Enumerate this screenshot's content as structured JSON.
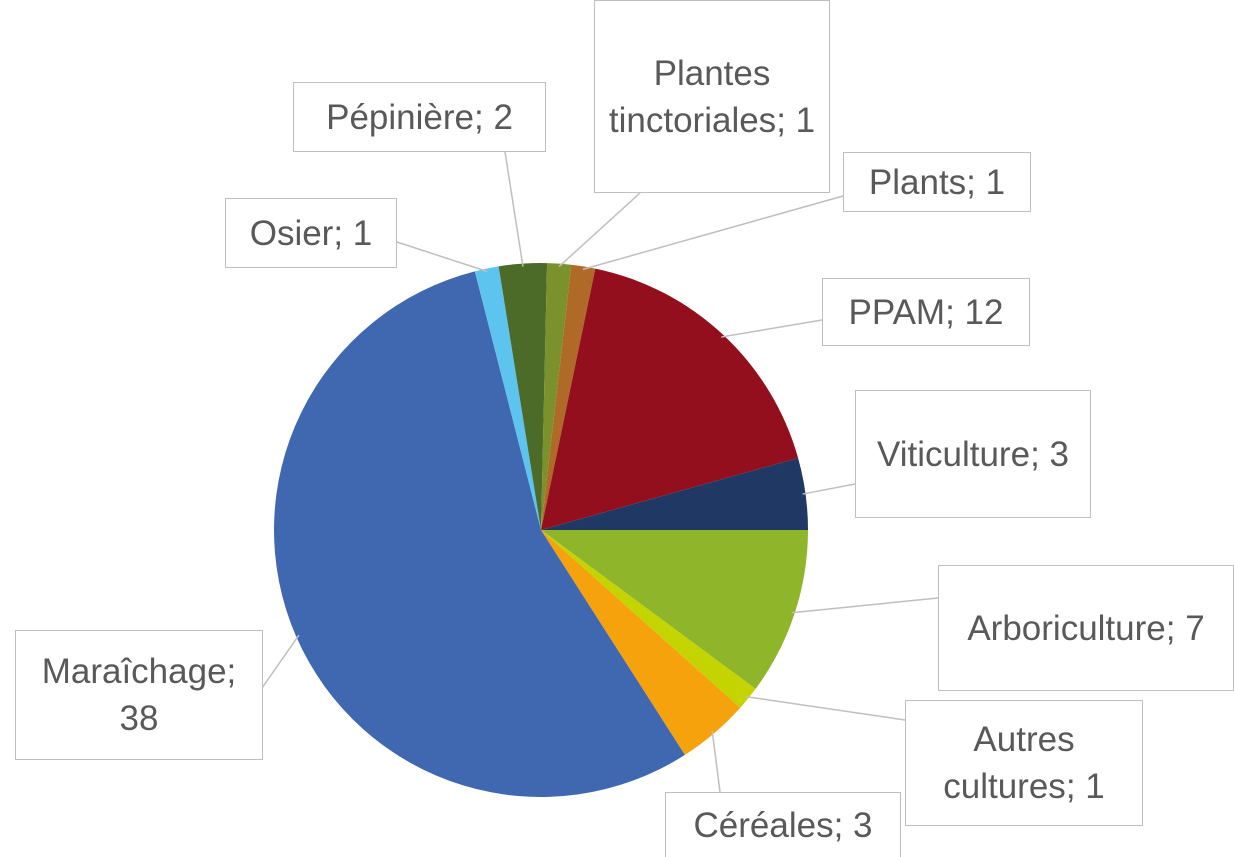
{
  "chart_data": {
    "type": "pie",
    "categories": [
      "Arboriculture",
      "Autres cultures",
      "Céréales",
      "Maraîchage",
      "Osier",
      "Pépinière",
      "Plantes tinctoriales",
      "Plants",
      "PPAM",
      "Viticulture"
    ],
    "values": [
      7,
      1,
      3,
      38,
      1,
      2,
      1,
      1,
      12,
      3
    ],
    "colors": [
      "#8fb52a",
      "#c3d400",
      "#f5a20c",
      "#4068b0",
      "#5cc4ee",
      "#4c6a28",
      "#7b922c",
      "#b06a28",
      "#930f1e",
      "#1f3864"
    ],
    "label_separator": "; "
  }
}
